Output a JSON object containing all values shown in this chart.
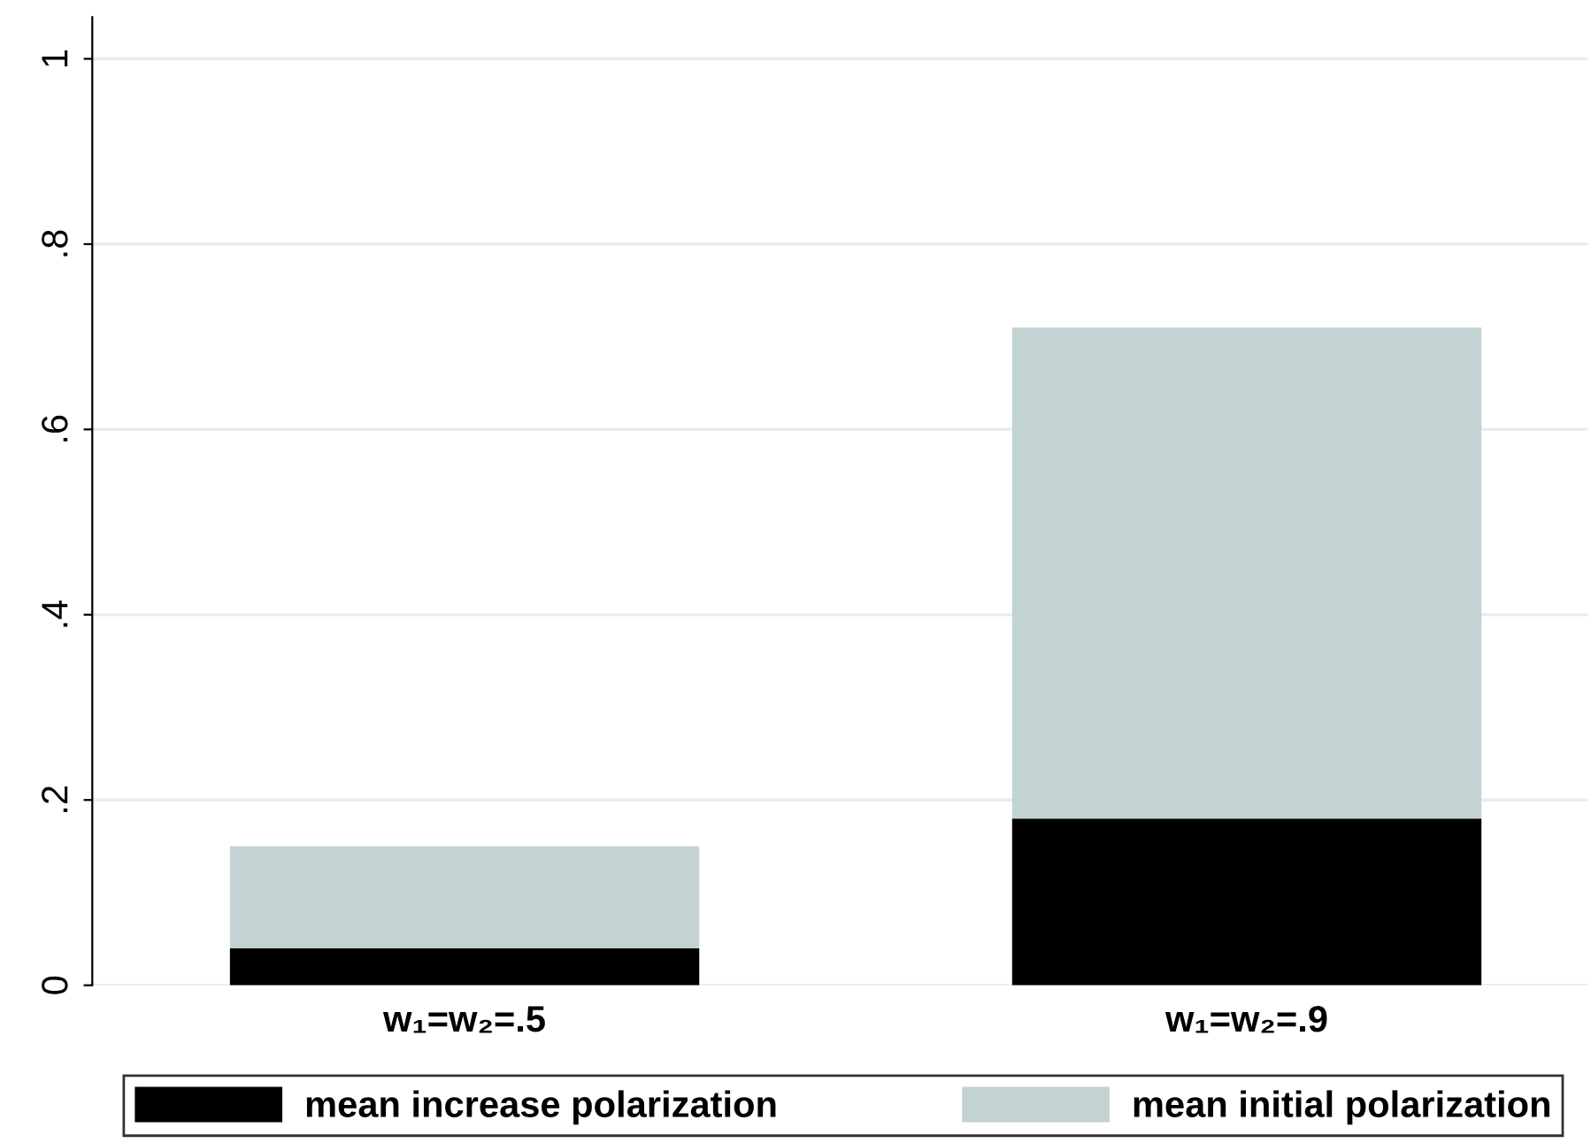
{
  "chart_data": {
    "type": "bar",
    "stacked": true,
    "categories": [
      "w₁=w₂=.5",
      "w₁=w₂=.9"
    ],
    "series": [
      {
        "name": "mean increase polarization",
        "color": "#000000",
        "values": [
          0.04,
          0.18
        ]
      },
      {
        "name": "mean initial polarization",
        "color": "#c3d3d3",
        "values": [
          0.11,
          0.53
        ]
      }
    ],
    "ylim": [
      0,
      1.045
    ],
    "yticks": [
      {
        "value": 0,
        "label": "0"
      },
      {
        "value": 0.2,
        "label": ".2"
      },
      {
        "value": 0.4,
        "label": ".4"
      },
      {
        "value": 0.6,
        "label": ".6"
      },
      {
        "value": 0.8,
        "label": ".8"
      },
      {
        "value": 1,
        "label": "1"
      }
    ],
    "grid": "y",
    "legend": "bottom"
  }
}
